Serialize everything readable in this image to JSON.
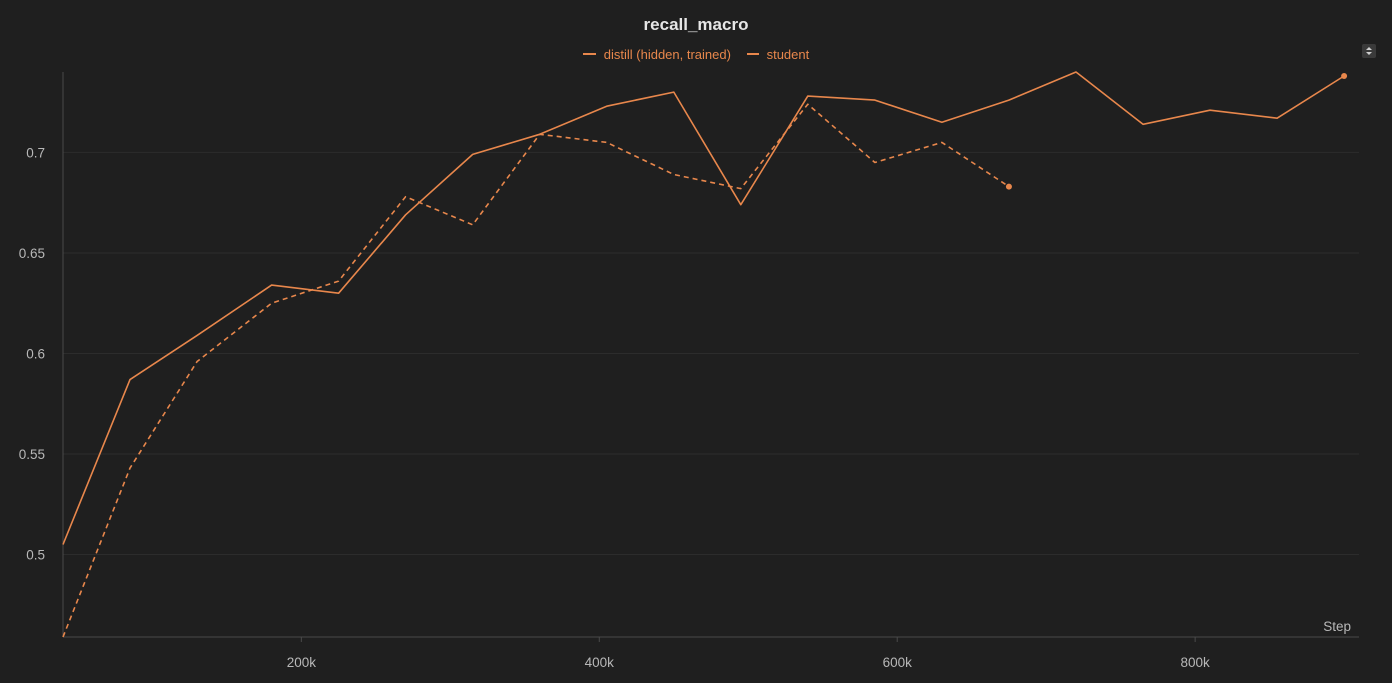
{
  "chart_data": {
    "type": "line",
    "title": "recall_macro",
    "xlabel": "Step",
    "ylabel": "",
    "xlim": [
      40000,
      910000
    ],
    "ylim": [
      0.459,
      0.74
    ],
    "xticks": [
      200000,
      400000,
      600000,
      800000
    ],
    "xtick_labels": [
      "200k",
      "400k",
      "600k",
      "800k"
    ],
    "yticks": [
      0.5,
      0.55,
      0.6,
      0.65,
      0.7
    ],
    "ytick_labels": [
      "0.5",
      "0.55",
      "0.6",
      "0.65",
      "0.7"
    ],
    "grid": true,
    "legend_position": "top-center",
    "series": [
      {
        "name": "distill (hidden, trained)",
        "style": "solid",
        "color": "#e8874c",
        "x": [
          40000,
          85000,
          130000,
          180000,
          225000,
          270000,
          315000,
          360000,
          405000,
          450000,
          495000,
          540000,
          585000,
          630000,
          675000,
          720000,
          765000,
          810000,
          855000,
          900000
        ],
        "y": [
          0.505,
          0.587,
          0.609,
          0.634,
          0.63,
          0.669,
          0.699,
          0.709,
          0.723,
          0.73,
          0.674,
          0.728,
          0.726,
          0.715,
          0.726,
          0.74,
          0.714,
          0.721,
          0.717,
          0.738
        ]
      },
      {
        "name": "student",
        "style": "dashed",
        "color": "#e8874c",
        "x": [
          40000,
          85000,
          130000,
          180000,
          225000,
          270000,
          315000,
          360000,
          405000,
          450000,
          495000,
          540000,
          585000,
          630000,
          675000
        ],
        "y": [
          0.459,
          0.543,
          0.596,
          0.625,
          0.636,
          0.678,
          0.664,
          0.709,
          0.705,
          0.689,
          0.682,
          0.724,
          0.695,
          0.705,
          0.683
        ]
      }
    ]
  }
}
